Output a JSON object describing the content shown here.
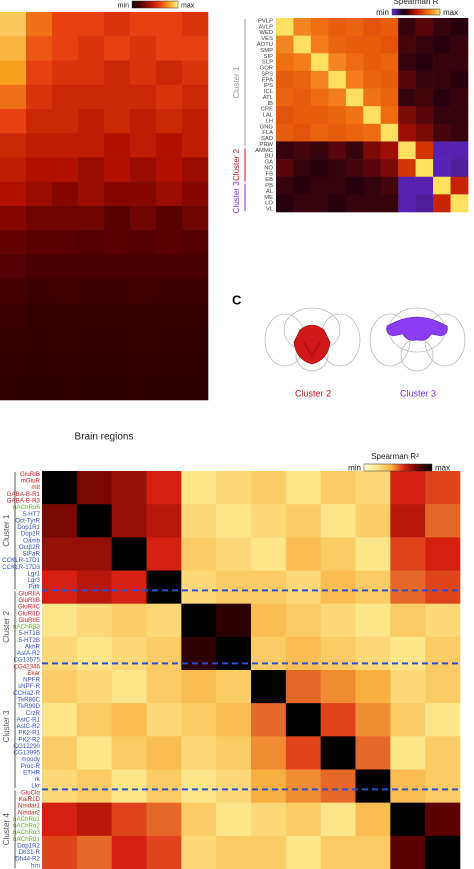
{
  "chart_data": [
    {
      "type": "heatmap",
      "xlabel": "Brain regions",
      "colorbar": {
        "min_label": "min",
        "max_label": "max",
        "colors": [
          "#100000",
          "#5a0000",
          "#b01000",
          "#e84010",
          "#f8a020",
          "#fff0a0"
        ]
      },
      "zlim": [
        0,
        1
      ],
      "values": [
        [
          0.9,
          0.7,
          0.6,
          0.6,
          0.55,
          0.6,
          0.6,
          0.55
        ],
        [
          0.85,
          0.65,
          0.6,
          0.55,
          0.6,
          0.55,
          0.6,
          0.6
        ],
        [
          0.8,
          0.6,
          0.55,
          0.55,
          0.5,
          0.55,
          0.5,
          0.55
        ],
        [
          0.7,
          0.55,
          0.5,
          0.5,
          0.5,
          0.5,
          0.55,
          0.5
        ],
        [
          0.6,
          0.5,
          0.5,
          0.45,
          0.5,
          0.45,
          0.5,
          0.45
        ],
        [
          0.5,
          0.45,
          0.45,
          0.45,
          0.4,
          0.45,
          0.4,
          0.45
        ],
        [
          0.45,
          0.4,
          0.4,
          0.35,
          0.4,
          0.35,
          0.4,
          0.35
        ],
        [
          0.4,
          0.35,
          0.3,
          0.35,
          0.3,
          0.3,
          0.35,
          0.3
        ],
        [
          0.3,
          0.25,
          0.25,
          0.25,
          0.2,
          0.25,
          0.2,
          0.25
        ],
        [
          0.22,
          0.2,
          0.2,
          0.18,
          0.2,
          0.18,
          0.2,
          0.18
        ],
        [
          0.18,
          0.15,
          0.15,
          0.15,
          0.15,
          0.15,
          0.15,
          0.15
        ],
        [
          0.14,
          0.12,
          0.13,
          0.12,
          0.12,
          0.13,
          0.12,
          0.12
        ],
        [
          0.12,
          0.1,
          0.11,
          0.1,
          0.1,
          0.11,
          0.1,
          0.1
        ],
        [
          0.1,
          0.09,
          0.1,
          0.09,
          0.09,
          0.1,
          0.09,
          0.09
        ],
        [
          0.09,
          0.08,
          0.09,
          0.08,
          0.08,
          0.09,
          0.08,
          0.08
        ],
        [
          0.08,
          0.07,
          0.08,
          0.07,
          0.07,
          0.08,
          0.07,
          0.07
        ]
      ]
    },
    {
      "type": "heatmap",
      "title": "Spearman R",
      "colorbar": {
        "min_label": "min",
        "max_label": "max",
        "colors": [
          "#6a2bd9",
          "#120010",
          "#c01000",
          "#f07010",
          "#ffe060"
        ]
      },
      "zlim": [
        0,
        1
      ],
      "rows": [
        {
          "label": "PVLP",
          "color": "#444"
        },
        {
          "label": "AVLP",
          "color": "#444"
        },
        {
          "label": "WED",
          "color": "#444"
        },
        {
          "label": "VES",
          "color": "#444"
        },
        {
          "label": "AOTU",
          "color": "#444"
        },
        {
          "label": "SMP",
          "color": "#444"
        },
        {
          "label": "SIP",
          "color": "#444"
        },
        {
          "label": "SLP",
          "color": "#444"
        },
        {
          "label": "GOR",
          "color": "#444"
        },
        {
          "label": "SPS",
          "color": "#444"
        },
        {
          "label": "EPA",
          "color": "#444"
        },
        {
          "label": "IPS",
          "color": "#444"
        },
        {
          "label": "ICL",
          "color": "#444"
        },
        {
          "label": "ATL",
          "color": "#444"
        },
        {
          "label": "IB",
          "color": "#444"
        },
        {
          "label": "CRE",
          "color": "#444"
        },
        {
          "label": "LAL",
          "color": "#444"
        },
        {
          "label": "LH",
          "color": "#444"
        },
        {
          "label": "GNG",
          "color": "#444"
        },
        {
          "label": "FLA",
          "color": "#444"
        },
        {
          "label": "SAD",
          "color": "#444"
        },
        {
          "label": "PRW",
          "color": "#444"
        },
        {
          "label": "AMMC",
          "color": "#444"
        },
        {
          "label": "BU",
          "color": "#444"
        },
        {
          "label": "GA",
          "color": "#444"
        },
        {
          "label": "NO",
          "color": "#444"
        },
        {
          "label": "FB",
          "color": "#444"
        },
        {
          "label": "EB",
          "color": "#444"
        },
        {
          "label": "PB",
          "color": "#444"
        },
        {
          "label": "AL",
          "color": "#444"
        },
        {
          "label": "ME",
          "color": "#444"
        },
        {
          "label": "LO",
          "color": "#444"
        },
        {
          "label": "VL",
          "color": "#444"
        }
      ],
      "clusters": [
        {
          "name": "Cluster 1",
          "color": "#999999",
          "start": 0,
          "end": 22
        },
        {
          "name": "Cluster 2",
          "color": "#c0161c",
          "start": 22,
          "end": 28
        },
        {
          "name": "Cluster 3",
          "color": "#7a2ee0",
          "start": 28,
          "end": 33
        }
      ],
      "values": [
        [
          1,
          0.8,
          0.75,
          0.7,
          0.72,
          0.68,
          0.7,
          0.3,
          0.35,
          0.3,
          0.28
        ],
        [
          0.8,
          1,
          0.78,
          0.72,
          0.7,
          0.7,
          0.68,
          0.32,
          0.3,
          0.28,
          0.3
        ],
        [
          0.75,
          0.78,
          1,
          0.8,
          0.74,
          0.7,
          0.72,
          0.3,
          0.28,
          0.3,
          0.3
        ],
        [
          0.7,
          0.72,
          0.8,
          1,
          0.78,
          0.72,
          0.7,
          0.35,
          0.3,
          0.3,
          0.28
        ],
        [
          0.72,
          0.7,
          0.74,
          0.78,
          1,
          0.76,
          0.72,
          0.3,
          0.32,
          0.28,
          0.3
        ],
        [
          0.68,
          0.7,
          0.7,
          0.72,
          0.76,
          1,
          0.74,
          0.4,
          0.35,
          0.3,
          0.3
        ],
        [
          0.7,
          0.68,
          0.72,
          0.7,
          0.72,
          0.74,
          1,
          0.45,
          0.4,
          0.32,
          0.3
        ],
        [
          0.3,
          0.32,
          0.3,
          0.35,
          0.3,
          0.4,
          0.45,
          1,
          0.6,
          0.05,
          0.05
        ],
        [
          0.35,
          0.3,
          0.28,
          0.3,
          0.32,
          0.35,
          0.4,
          0.6,
          1,
          0.05,
          0.08
        ],
        [
          0.3,
          0.28,
          0.3,
          0.3,
          0.28,
          0.3,
          0.32,
          0.05,
          0.05,
          1,
          0.55
        ],
        [
          0.28,
          0.3,
          0.3,
          0.28,
          0.3,
          0.3,
          0.3,
          0.05,
          0.08,
          0.55,
          1
        ]
      ]
    },
    {
      "type": "heatmap",
      "title": "Spearman R²",
      "colorbar": {
        "min_label": "min",
        "max_label": "max",
        "colors": [
          "#fffbd6",
          "#fde58a",
          "#f8b040",
          "#d42010",
          "#5a0000",
          "#000000"
        ]
      },
      "zlim": [
        0,
        1
      ],
      "rows": [
        {
          "label": "GluRIB",
          "color": "#d02020"
        },
        {
          "label": "mGluR",
          "color": "#d02020"
        },
        {
          "label": "mtt",
          "color": "#d02020"
        },
        {
          "label": "GABA-B-R1",
          "color": "#d02020"
        },
        {
          "label": "GABA-B-R3",
          "color": "#d02020"
        },
        {
          "label": "nAChRα6",
          "color": "#60b030"
        },
        {
          "label": "5-HT7",
          "color": "#3050c0"
        },
        {
          "label": "Oct-TyrR",
          "color": "#3050c0"
        },
        {
          "label": "Dop1R1",
          "color": "#3050c0"
        },
        {
          "label": "Dop2R",
          "color": "#3050c0"
        },
        {
          "label": "Oamb",
          "color": "#3050c0"
        },
        {
          "label": "Octβ2R",
          "color": "#3050c0"
        },
        {
          "label": "SIFaR",
          "color": "#3050c0"
        },
        {
          "label": "CCKLR-17D1",
          "color": "#3050c0"
        },
        {
          "label": "CCKLR-17D3",
          "color": "#3050c0"
        },
        {
          "label": "Lgr1",
          "color": "#3050c0"
        },
        {
          "label": "Lgr3",
          "color": "#3050c0"
        },
        {
          "label": "Pdfr",
          "color": "#3050c0"
        },
        {
          "label": "GluRIIA",
          "color": "#d02020"
        },
        {
          "label": "GluRIIB",
          "color": "#d02020"
        },
        {
          "label": "GluRIIC",
          "color": "#d02020"
        },
        {
          "label": "GluRIID",
          "color": "#d02020"
        },
        {
          "label": "GluRIIE",
          "color": "#d02020"
        },
        {
          "label": "nAChRβ3",
          "color": "#60b030"
        },
        {
          "label": "5-HT1B",
          "color": "#3050c0"
        },
        {
          "label": "5-HT2B",
          "color": "#3050c0"
        },
        {
          "label": "AkhR",
          "color": "#3050c0"
        },
        {
          "label": "AstA-R2",
          "color": "#3050c0"
        },
        {
          "label": "CG13575",
          "color": "#3050c0"
        },
        {
          "label": "CG42346",
          "color": "#d02020"
        },
        {
          "label": "Ekar",
          "color": "#d02020"
        },
        {
          "label": "NPFR",
          "color": "#3050c0"
        },
        {
          "label": "sNPF-R",
          "color": "#3050c0"
        },
        {
          "label": "CCHa2-R",
          "color": "#3050c0"
        },
        {
          "label": "TkR86C",
          "color": "#3050c0"
        },
        {
          "label": "TkR99D",
          "color": "#3050c0"
        },
        {
          "label": "CrzR",
          "color": "#3050c0"
        },
        {
          "label": "AstC-R1",
          "color": "#3050c0"
        },
        {
          "label": "AstC-R2",
          "color": "#3050c0"
        },
        {
          "label": "PK2-R1",
          "color": "#3050c0"
        },
        {
          "label": "PK2-R2",
          "color": "#3050c0"
        },
        {
          "label": "CG12290",
          "color": "#3050c0"
        },
        {
          "label": "CG13995",
          "color": "#3050c0"
        },
        {
          "label": "moody",
          "color": "#3050c0"
        },
        {
          "label": "Proc-R",
          "color": "#3050c0"
        },
        {
          "label": "ETHR",
          "color": "#3050c0"
        },
        {
          "label": "rk",
          "color": "#3050c0"
        },
        {
          "label": "Lkr",
          "color": "#3050c0"
        },
        {
          "label": "GluClα",
          "color": "#d02020"
        },
        {
          "label": "KaiR1D",
          "color": "#d02020"
        },
        {
          "label": "Nmdar1",
          "color": "#d02020"
        },
        {
          "label": "Nmdar2",
          "color": "#d02020"
        },
        {
          "label": "nAChRα1",
          "color": "#60b030"
        },
        {
          "label": "nAChRα2",
          "color": "#60b030"
        },
        {
          "label": "nAChRα3",
          "color": "#60b030"
        },
        {
          "label": "nAChRβ1",
          "color": "#60b030"
        },
        {
          "label": "Dop1R2",
          "color": "#3050c0"
        },
        {
          "label": "Dh31-R",
          "color": "#3050c0"
        },
        {
          "label": "Dh44-R2",
          "color": "#3050c0"
        },
        {
          "label": "hrn",
          "color": "#3050c0"
        }
      ],
      "clusters": [
        {
          "name": "Cluster 1",
          "color": "#555555",
          "start": 0,
          "end": 18
        },
        {
          "name": "Cluster 2",
          "color": "#555555",
          "start": 18,
          "end": 29
        },
        {
          "name": "Cluster 3",
          "color": "#555555",
          "start": 29,
          "end": 48
        },
        {
          "name": "Cluster 4",
          "color": "#555555",
          "start": 48,
          "end": 60
        }
      ],
      "values": [
        [
          1,
          0.75,
          0.7,
          0.6,
          0.2,
          0.25,
          0.3,
          0.2,
          0.3,
          0.25,
          0.6,
          0.55
        ],
        [
          0.75,
          1,
          0.7,
          0.65,
          0.25,
          0.2,
          0.25,
          0.3,
          0.2,
          0.3,
          0.65,
          0.5
        ],
        [
          0.7,
          0.7,
          1,
          0.6,
          0.3,
          0.25,
          0.2,
          0.35,
          0.3,
          0.2,
          0.55,
          0.6
        ],
        [
          0.6,
          0.65,
          0.6,
          1,
          0.25,
          0.3,
          0.3,
          0.25,
          0.35,
          0.3,
          0.5,
          0.55
        ],
        [
          0.2,
          0.25,
          0.3,
          0.25,
          1,
          0.9,
          0.35,
          0.3,
          0.25,
          0.2,
          0.3,
          0.25
        ],
        [
          0.25,
          0.2,
          0.25,
          0.3,
          0.9,
          1,
          0.3,
          0.35,
          0.3,
          0.25,
          0.2,
          0.3
        ],
        [
          0.3,
          0.25,
          0.2,
          0.3,
          0.35,
          0.3,
          1,
          0.5,
          0.45,
          0.4,
          0.25,
          0.3
        ],
        [
          0.2,
          0.3,
          0.35,
          0.25,
          0.3,
          0.35,
          0.5,
          1,
          0.55,
          0.45,
          0.3,
          0.2
        ],
        [
          0.3,
          0.2,
          0.3,
          0.35,
          0.25,
          0.3,
          0.45,
          0.55,
          1,
          0.5,
          0.2,
          0.3
        ],
        [
          0.25,
          0.3,
          0.2,
          0.3,
          0.2,
          0.25,
          0.4,
          0.45,
          0.5,
          1,
          0.35,
          0.3
        ],
        [
          0.6,
          0.65,
          0.55,
          0.5,
          0.3,
          0.2,
          0.25,
          0.3,
          0.2,
          0.35,
          1,
          0.8
        ],
        [
          0.55,
          0.5,
          0.6,
          0.55,
          0.25,
          0.3,
          0.3,
          0.2,
          0.3,
          0.3,
          0.8,
          1
        ]
      ]
    }
  ],
  "panel_c": {
    "label": "C",
    "captions": [
      "Cluster 2",
      "Cluster 3"
    ]
  }
}
